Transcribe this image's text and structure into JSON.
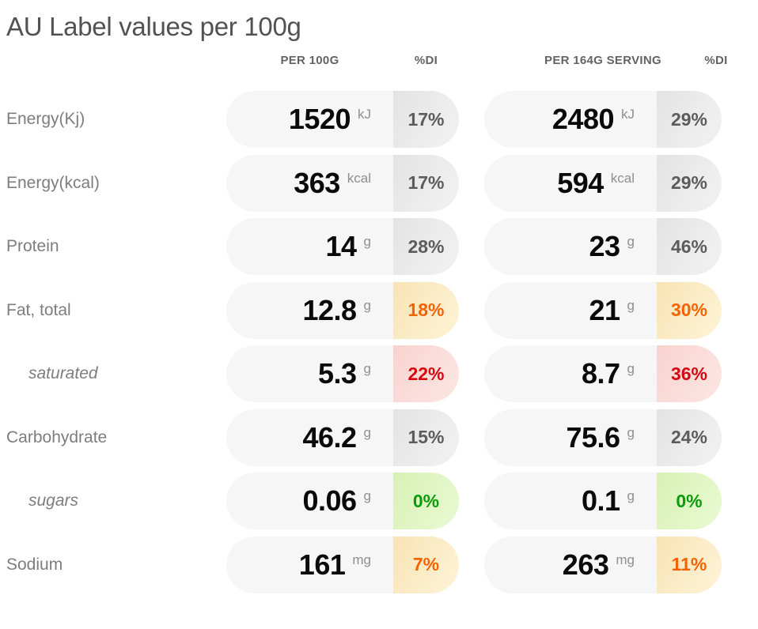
{
  "title": "AU Label values per 100g",
  "columns": {
    "per100": "PER 100G",
    "di1": "%DI",
    "serving": "PER 164G SERVING",
    "di2": "%DI"
  },
  "rows": [
    {
      "label": "Energy(Kj)",
      "sub": false,
      "status": "neutral",
      "per100": {
        "value": "1520",
        "unit": "kJ",
        "di": "17%"
      },
      "serving": {
        "value": "2480",
        "unit": "kJ",
        "di": "29%"
      }
    },
    {
      "label": "Energy(kcal)",
      "sub": false,
      "status": "neutral",
      "per100": {
        "value": "363",
        "unit": "kcal",
        "di": "17%"
      },
      "serving": {
        "value": "594",
        "unit": "kcal",
        "di": "29%"
      }
    },
    {
      "label": "Protein",
      "sub": false,
      "status": "neutral",
      "per100": {
        "value": "14",
        "unit": "g",
        "di": "28%"
      },
      "serving": {
        "value": "23",
        "unit": "g",
        "di": "46%"
      }
    },
    {
      "label": "Fat, total",
      "sub": false,
      "status": "orange",
      "per100": {
        "value": "12.8",
        "unit": "g",
        "di": "18%"
      },
      "serving": {
        "value": "21",
        "unit": "g",
        "di": "30%"
      }
    },
    {
      "label": "saturated",
      "sub": true,
      "status": "red",
      "per100": {
        "value": "5.3",
        "unit": "g",
        "di": "22%"
      },
      "serving": {
        "value": "8.7",
        "unit": "g",
        "di": "36%"
      }
    },
    {
      "label": "Carbohydrate",
      "sub": false,
      "status": "neutral",
      "per100": {
        "value": "46.2",
        "unit": "g",
        "di": "15%"
      },
      "serving": {
        "value": "75.6",
        "unit": "g",
        "di": "24%"
      }
    },
    {
      "label": "sugars",
      "sub": true,
      "status": "green",
      "per100": {
        "value": "0.06",
        "unit": "g",
        "di": "0%"
      },
      "serving": {
        "value": "0.1",
        "unit": "g",
        "di": "0%"
      }
    },
    {
      "label": "Sodium",
      "sub": false,
      "status": "orange",
      "per100": {
        "value": "161",
        "unit": "mg",
        "di": "7%"
      },
      "serving": {
        "value": "263",
        "unit": "mg",
        "di": "11%"
      }
    }
  ],
  "colors": {
    "title_text": "#525252",
    "header_text": "#636363",
    "label_text": "#7d7d7d",
    "value_text": "#0a0a0a",
    "unit_text": "#8f8f8f",
    "pill_bg": "#f6f6f6",
    "badge_neutral_bg": "#e9e9e9",
    "badge_neutral_text": "#5c5c5c",
    "badge_orange_bg": "#fbeac2",
    "badge_orange_text": "#f56300",
    "badge_red_bg": "#f9dad6",
    "badge_red_text": "#d6070f",
    "badge_green_bg": "#def4c0",
    "badge_green_text": "#0a9b0a"
  }
}
